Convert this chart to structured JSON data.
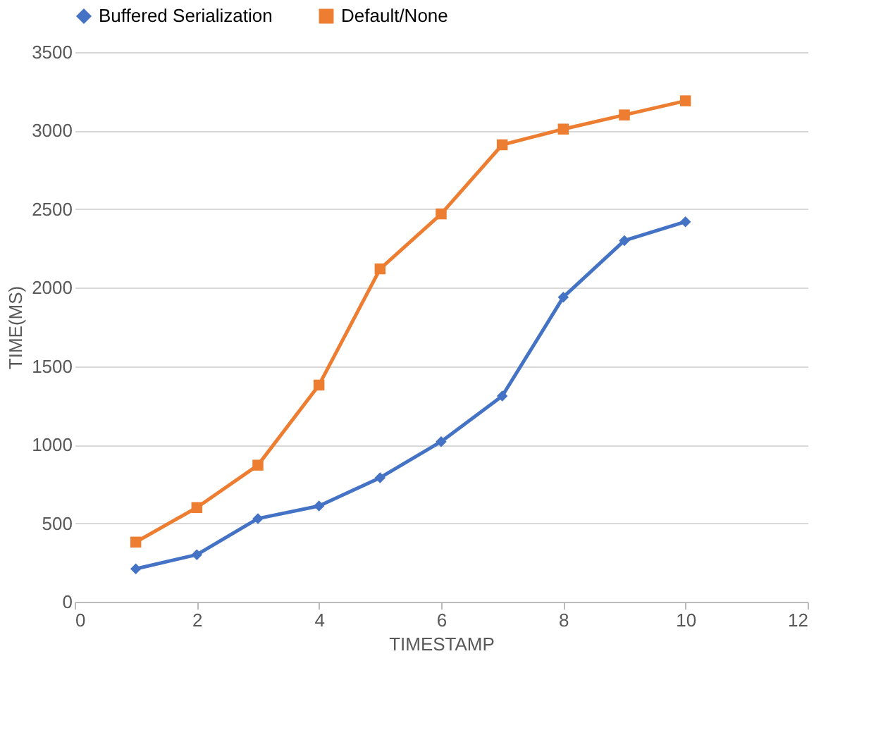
{
  "chart_data": {
    "type": "line",
    "xlabel": "TIMESTAMP",
    "ylabel": "TIME(MS)",
    "x": [
      1,
      2,
      3,
      4,
      5,
      6,
      7,
      8,
      9,
      10
    ],
    "series": [
      {
        "name": "Buffered Serialization",
        "color": "#4472c4",
        "marker": "diamond",
        "values": [
          210,
          300,
          530,
          610,
          790,
          1020,
          1310,
          1940,
          2300,
          2420
        ]
      },
      {
        "name": "Default/None",
        "color": "#ed7d31",
        "marker": "square",
        "values": [
          380,
          600,
          870,
          1380,
          2120,
          2470,
          2910,
          3010,
          3100,
          3190
        ]
      }
    ],
    "xlim": [
      0,
      12
    ],
    "xticks": [
      0,
      2,
      4,
      6,
      8,
      10,
      12
    ],
    "ylim": [
      0,
      3500
    ],
    "yticks": [
      0,
      500,
      1000,
      1500,
      2000,
      2500,
      3000,
      3500
    ],
    "grid": "y",
    "legend": "top",
    "line_style": "solid"
  }
}
